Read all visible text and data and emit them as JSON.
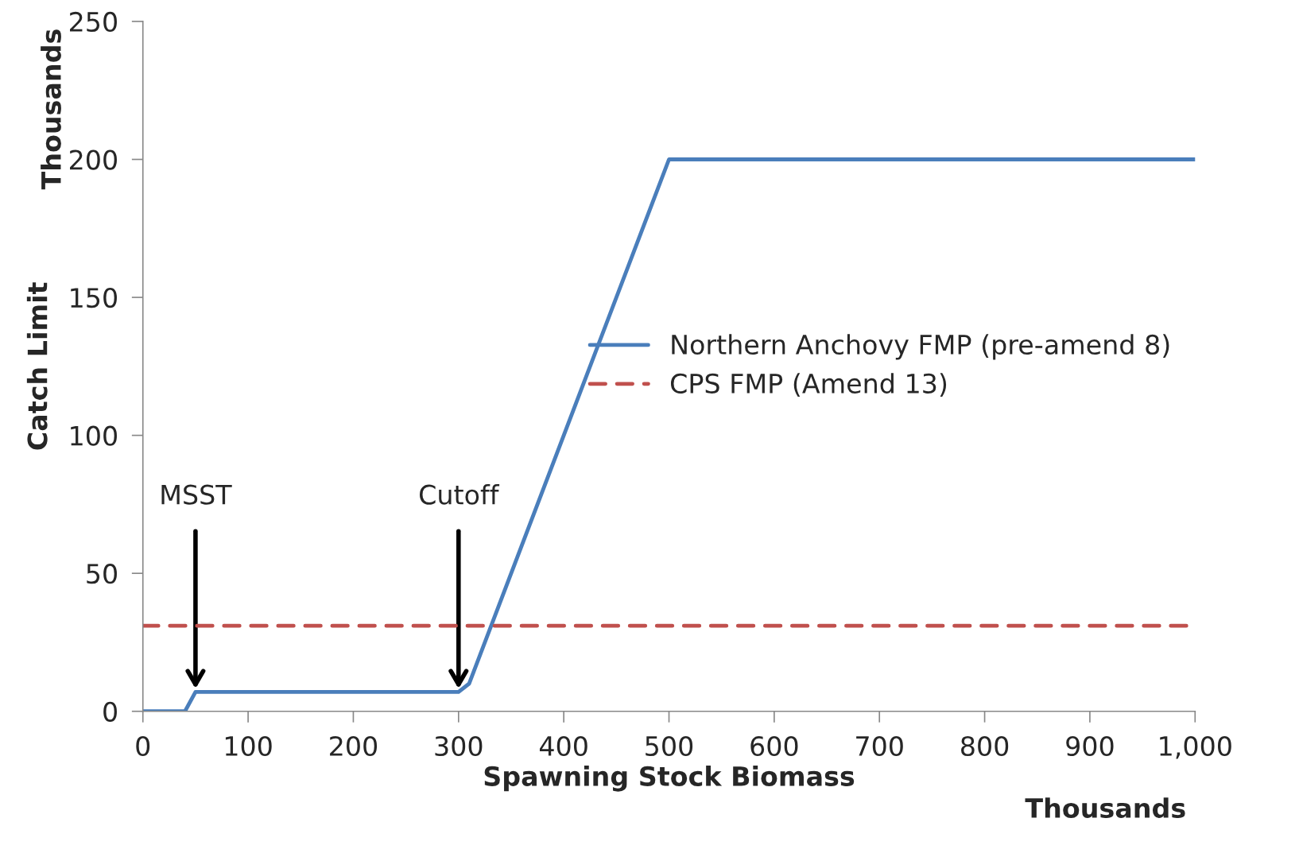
{
  "chart_data": {
    "type": "line",
    "xlabel": "Spawning Stock Biomass",
    "ylabel": "Catch Limit",
    "series": [
      {
        "name": "Northern Anchovy FMP (pre-amend 8)",
        "color": "#4a7ebb",
        "line_style": "solid",
        "x": [
          0,
          40,
          50,
          300,
          310,
          500,
          1000
        ],
        "values": [
          0,
          0,
          7,
          7,
          10,
          200,
          200
        ]
      },
      {
        "name": "CPS FMP (Amend 13)",
        "color": "#c0504d",
        "line_style": "dashed",
        "x": [
          0,
          1000
        ],
        "values": [
          31,
          31
        ]
      }
    ],
    "annotations": [
      "Thousands",
      "Thousands",
      "MSST",
      "Cutoff"
    ],
    "xlim": [
      0,
      1000
    ],
    "ylim": [
      0,
      250
    ],
    "xticks": [
      0,
      100,
      200,
      300,
      400,
      500,
      600,
      700,
      800,
      900,
      {
        "value": 1000,
        "label": "1,000"
      }
    ],
    "yticks": [
      0,
      50,
      100,
      150,
      200,
      250
    ],
    "grid": false,
    "legend": "right",
    "marker": "none"
  }
}
